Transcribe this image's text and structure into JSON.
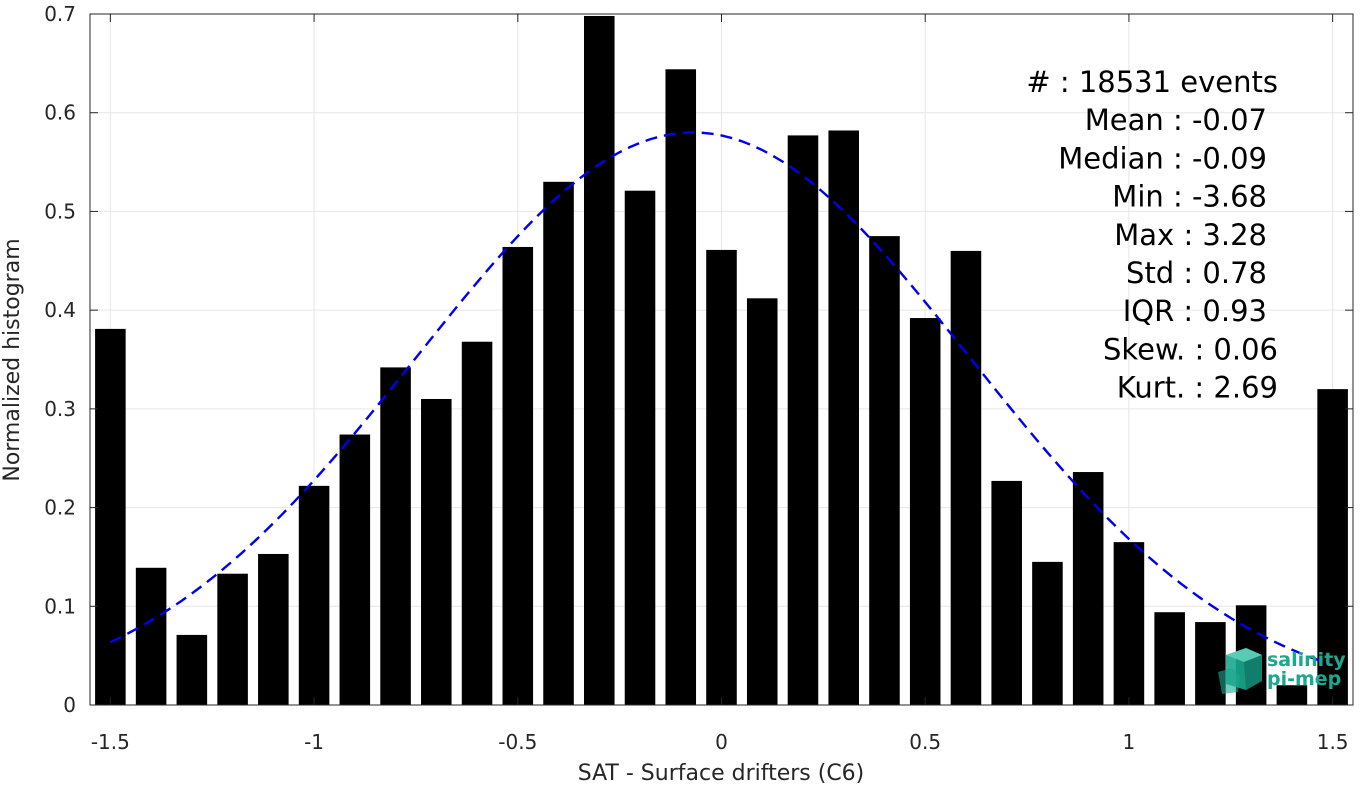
{
  "chart_data": {
    "type": "bar",
    "xlabel": "SAT - Surface drifters (C6)",
    "ylabel": "Normalized histogram",
    "xlim": [
      -1.55,
      1.55
    ],
    "ylim": [
      0,
      0.7
    ],
    "grid": true,
    "x_ticks": [
      -1.5,
      -1,
      -0.5,
      0,
      0.5,
      1,
      1.5
    ],
    "x_tick_labels": [
      "-1.5",
      "-1",
      "-0.5",
      "0",
      "0.5",
      "1",
      "1.5"
    ],
    "y_ticks": [
      0,
      0.1,
      0.2,
      0.3,
      0.4,
      0.5,
      0.6,
      0.7
    ],
    "y_tick_labels": [
      "0",
      "0.1",
      "0.2",
      "0.3",
      "0.4",
      "0.5",
      "0.6",
      "0.7"
    ],
    "bar_color": "#000000",
    "bar_width": 0.075,
    "bars": {
      "x": [
        -1.5,
        -1.4,
        -1.3,
        -1.2,
        -1.1,
        -1.0,
        -0.9,
        -0.8,
        -0.7,
        -0.6,
        -0.5,
        -0.4,
        -0.3,
        -0.2,
        -0.1,
        0.0,
        0.1,
        0.2,
        0.3,
        0.4,
        0.5,
        0.6,
        0.7,
        0.8,
        0.9,
        1.0,
        1.1,
        1.2,
        1.3,
        1.4,
        1.5
      ],
      "values": [
        0.381,
        0.139,
        0.071,
        0.133,
        0.153,
        0.222,
        0.274,
        0.342,
        0.31,
        0.368,
        0.464,
        0.53,
        0.698,
        0.521,
        0.644,
        0.461,
        0.412,
        0.577,
        0.582,
        0.475,
        0.392,
        0.46,
        0.227,
        0.145,
        0.236,
        0.165,
        0.094,
        0.084,
        0.101,
        0.02,
        0.32
      ]
    },
    "fit_curve": {
      "type": "gaussian",
      "style": "dashed",
      "color": "#0000ee",
      "peak": 0.58,
      "mean": -0.07,
      "std": 0.68,
      "x_range": [
        -1.5,
        1.5
      ]
    },
    "stats": [
      {
        "label": "#  : 18531 events"
      },
      {
        "label": "Mean : -0.07"
      },
      {
        "label": "Median : -0.09"
      },
      {
        "label": "Min : -3.68"
      },
      {
        "label": "Max : 3.28"
      },
      {
        "label": "Std : 0.78"
      },
      {
        "label": "IQR : 0.93"
      },
      {
        "label": "Skew. : 0.06"
      },
      {
        "label": "Kurt. : 2.69"
      }
    ],
    "logo": {
      "line1": "salinity",
      "line2": "pi-mep",
      "color": "#1aa88f"
    }
  }
}
